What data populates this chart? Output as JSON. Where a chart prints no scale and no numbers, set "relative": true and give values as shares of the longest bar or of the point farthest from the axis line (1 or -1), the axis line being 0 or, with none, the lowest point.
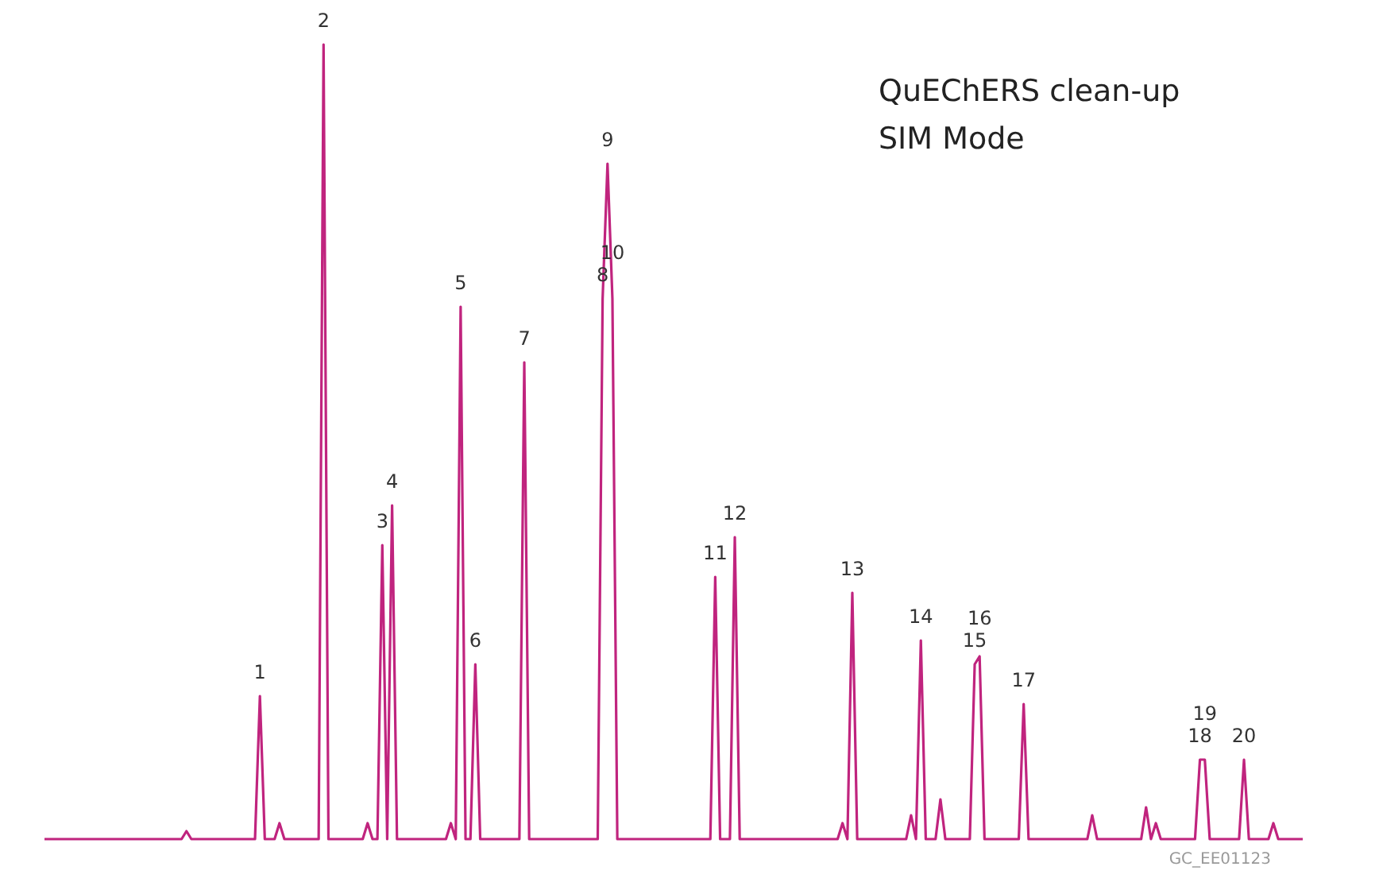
{
  "chart_data": {
    "type": "line",
    "relative": true,
    "legend": false,
    "marker": "none",
    "line_style": "solid",
    "annotations": [
      "QuEChERS clean-up",
      "SIM Mode",
      "GC_EE01123",
      {
        "text": "1",
        "y": 0.18
      },
      {
        "text": "2",
        "y": 1
      },
      {
        "text": "3",
        "y": 0.37
      },
      {
        "text": "4",
        "y": 0.42
      },
      {
        "text": "5",
        "y": 0.67
      },
      {
        "text": "6",
        "y": 0.22
      },
      {
        "text": "7",
        "y": 0.6
      },
      {
        "text": "8",
        "y": 0.68
      },
      {
        "text": "9",
        "y": 0.85
      },
      {
        "text": "10",
        "y": 0.68
      },
      {
        "text": "11",
        "y": 0.33
      },
      {
        "text": "12",
        "y": 0.38
      },
      {
        "text": "13",
        "y": 0.31
      },
      {
        "text": "14",
        "y": 0.25
      },
      {
        "text": "15",
        "y": 0.22
      },
      {
        "text": "16",
        "y": 0.23
      },
      {
        "text": "17",
        "y": 0.17
      },
      {
        "text": "18",
        "y": 0.1
      },
      {
        "text": "19",
        "y": 0.1
      },
      {
        "text": "20",
        "y": 0.1
      }
    ],
    "categories": [
      null,
      null,
      null,
      null,
      null,
      null,
      null,
      null,
      null,
      null,
      null,
      null,
      null,
      null,
      null,
      null,
      null,
      null,
      null,
      null,
      null,
      null,
      null,
      null,
      null,
      null,
      null,
      null,
      null,
      null,
      null,
      null,
      null,
      null,
      null,
      null,
      null,
      null,
      null,
      null,
      null,
      null,
      null,
      null,
      null,
      null,
      null,
      null,
      null,
      null,
      null,
      null,
      null,
      null,
      null,
      null,
      null,
      null,
      null,
      null,
      null,
      null,
      null,
      null,
      null,
      null,
      null,
      null,
      null,
      null,
      null,
      null,
      null,
      null,
      null,
      null,
      null,
      null,
      null,
      null,
      null,
      null,
      null,
      null,
      null,
      null,
      null,
      null,
      null,
      null,
      null,
      null,
      null,
      null,
      null,
      null,
      null,
      null,
      null,
      null,
      null,
      null,
      null,
      null,
      null,
      null,
      null,
      null,
      null,
      null,
      null,
      null,
      null,
      null,
      null,
      null,
      null,
      null,
      null,
      null,
      null,
      null,
      null,
      null,
      null,
      null,
      null,
      null,
      null,
      null,
      null,
      null,
      null,
      null,
      null,
      null,
      null,
      null,
      null,
      null,
      null,
      null,
      null,
      null,
      null,
      null,
      null,
      null,
      null,
      null,
      null,
      null,
      null,
      null,
      null,
      null,
      null,
      null,
      null,
      null,
      null,
      null,
      null,
      null,
      null,
      null,
      null,
      null,
      null,
      null,
      null,
      null,
      null,
      null,
      null,
      null,
      null,
      null,
      null,
      null,
      null,
      null,
      null,
      null,
      null,
      null,
      null,
      null,
      null,
      null,
      null,
      null,
      null,
      null,
      null,
      null,
      null,
      null,
      null,
      null,
      null,
      null,
      null,
      null,
      null,
      null,
      null,
      null,
      null,
      null,
      null,
      null,
      null,
      null,
      null,
      null,
      null,
      null,
      null,
      null,
      null,
      null,
      null,
      null,
      null,
      null,
      null,
      null,
      null,
      null,
      null,
      null,
      null,
      null,
      null,
      null,
      null,
      null,
      null,
      null,
      null,
      null,
      null,
      null,
      null,
      null,
      null,
      null,
      null,
      null,
      null,
      null,
      null,
      null,
      null,
      null,
      null,
      null
    ],
    "series": [
      {
        "color": "#c0247e",
        "values": [
          0,
          0,
          0,
          0,
          0,
          0,
          0,
          0,
          0,
          0,
          0,
          0,
          0,
          0,
          0,
          0,
          0,
          0,
          0,
          0,
          0,
          0,
          0,
          0,
          0,
          0,
          0,
          0,
          0,
          0.01,
          0,
          0,
          0,
          0,
          0,
          0,
          0,
          0,
          0,
          0,
          0,
          0,
          0,
          0,
          0.18,
          0,
          0,
          0,
          0.02,
          0,
          0,
          0,
          0,
          0,
          0,
          0,
          0,
          1,
          0,
          0,
          0,
          0,
          0,
          0,
          0,
          0,
          0.02,
          0,
          0,
          0.37,
          0,
          0.42,
          0,
          0,
          0,
          0,
          0,
          0,
          0,
          0,
          0,
          0,
          0,
          0.02,
          0,
          0.67,
          0,
          0,
          0.22,
          0,
          0,
          0,
          0,
          0,
          0,
          0,
          0,
          0,
          0.6,
          0,
          0,
          0,
          0,
          0,
          0,
          0,
          0,
          0,
          0,
          0,
          0,
          0,
          0,
          0,
          0.68,
          0.85,
          0.68,
          0,
          0,
          0,
          0,
          0,
          0,
          0,
          0,
          0,
          0,
          0,
          0,
          0,
          0,
          0,
          0,
          0,
          0,
          0,
          0,
          0.33,
          0,
          0,
          0,
          0.38,
          0,
          0,
          0,
          0,
          0,
          0,
          0,
          0,
          0,
          0,
          0,
          0,
          0,
          0,
          0,
          0,
          0,
          0,
          0,
          0,
          0,
          0.02,
          0,
          0.31,
          0,
          0,
          0,
          0,
          0,
          0,
          0,
          0,
          0,
          0,
          0,
          0.03,
          0,
          0.25,
          0,
          0,
          0,
          0.05,
          0,
          0,
          0,
          0,
          0,
          0,
          0.22,
          0.23,
          0,
          0,
          0,
          0,
          0,
          0,
          0,
          0,
          0.17,
          0,
          0,
          0,
          0,
          0,
          0,
          0,
          0,
          0,
          0,
          0,
          0,
          0,
          0.03,
          0,
          0,
          0,
          0,
          0,
          0,
          0,
          0,
          0,
          0,
          0.04,
          0,
          0.02,
          0,
          0,
          0,
          0,
          0,
          0,
          0,
          0,
          0.1,
          0.1,
          0,
          0,
          0,
          0,
          0,
          0,
          0,
          0.1,
          0,
          0,
          0,
          0,
          0,
          0.02,
          0,
          0,
          0,
          0,
          0,
          0
        ]
      }
    ]
  }
}
